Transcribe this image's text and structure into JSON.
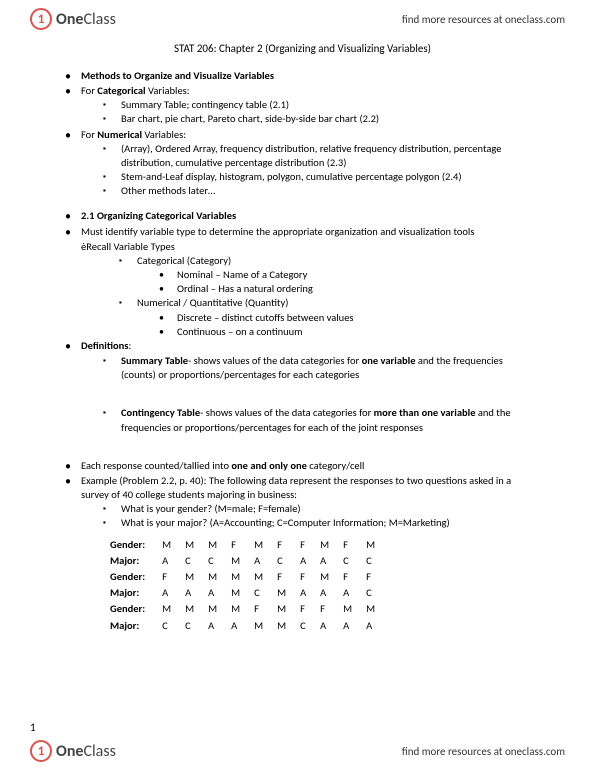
{
  "brand": {
    "icon": "1",
    "name_bold": "One",
    "name_rest": "Class",
    "link": "find more resources at oneclass.com"
  },
  "title": "STAT 206:  Chapter 2 (Organizing and Visualizing Variables)",
  "s1": {
    "heading": "Methods to Organize and Visualize Variables",
    "cat_label": "For ",
    "cat_bold": "Categorical",
    "cat_after": " Variables:",
    "cat_items": [
      "Summary Table; contingency table (2.1)",
      "Bar chart, pie chart, Pareto chart, side-by-side bar chart (2.2)"
    ],
    "num_label": "For ",
    "num_bold": "Numerical",
    "num_after": " Variables:",
    "num_items": [
      "(Array), Ordered Array, frequency distribution, relative frequency distribution, percentage distribution, cumulative percentage distribution (2.3)",
      "Stem-and-Leaf display, histogram, polygon, cumulative percentage polygon (2.4)",
      "Other methods later…"
    ]
  },
  "s2": {
    "heading": "2.1 Organizing Categorical Variables",
    "must": "Must identify variable type to determine the appropriate organization and visualization tools",
    "recall": "èRecall Variable Types",
    "cat_h": "Categorical (Category)",
    "cat_items": [
      "Nominal – Name of a Category",
      "Ordinal – Has a natural ordering"
    ],
    "num_h": "Numerical / Quantitative (Quantity)",
    "num_items": [
      "Discrete – distinct cutoffs between values",
      "Continuous – on a continuum"
    ]
  },
  "defs": {
    "heading": "Definitions",
    "summary_b": "Summary Table",
    "summary_t1": "- shows values of the data categories for ",
    "summary_bold": "one variable",
    "summary_t2": " and the frequencies (counts) or proportions/percentages for each categories",
    "cont_b": "Contingency Table",
    "cont_t1": "- shows values of the data categories for ",
    "cont_bold": "more than one variable",
    "cont_t2": " and the frequencies or proportions/percentages for each of the joint responses"
  },
  "ex": {
    "l1_a": "Each response counted/tallied into ",
    "l1_b": "one and only one",
    "l1_c": " category/cell",
    "l2": "Example (Problem 2.2, p. 40):  The following data represent the responses to two questions asked in a survey of 40 college students majoring in business:",
    "q1": "What is your gender? (M=male; F=female)",
    "q2": "What is your major? (A=Accounting; C=Computer Information; M=Marketing)"
  },
  "table": {
    "labels": [
      "Gender:",
      "Major:",
      "Gender:",
      "Major:",
      "Gender:",
      "Major:"
    ],
    "rows": [
      [
        "M",
        "M",
        "M",
        "F",
        "M",
        "F",
        "F",
        "M",
        "F",
        "M"
      ],
      [
        "A",
        "C",
        "C",
        "M",
        "A",
        "C",
        "A",
        "A",
        "C",
        "C"
      ],
      [
        "F",
        "M",
        "M",
        "M",
        "M",
        "F",
        "F",
        "M",
        "F",
        "F"
      ],
      [
        "A",
        "A",
        "A",
        "M",
        "C",
        "M",
        "A",
        "A",
        "A",
        "C"
      ],
      [
        "M",
        "M",
        "M",
        "M",
        "F",
        "M",
        "F",
        "F",
        "M",
        "M"
      ],
      [
        "C",
        "C",
        "A",
        "A",
        "M",
        "M",
        "C",
        "A",
        "A",
        "A"
      ]
    ]
  },
  "pagenum": "1"
}
